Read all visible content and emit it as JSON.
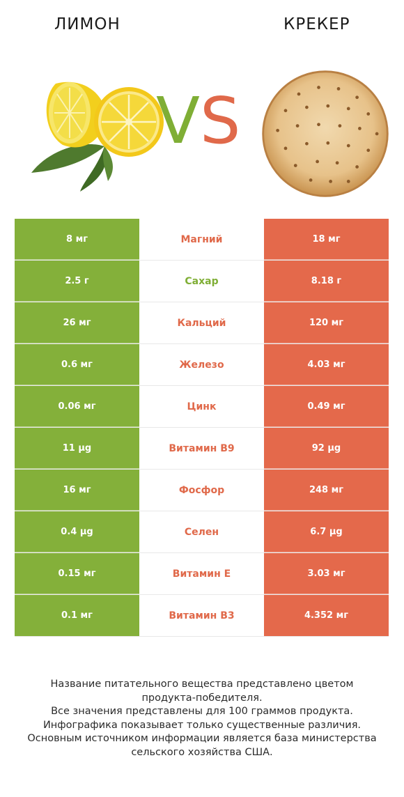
{
  "header": {
    "left_title": "ЛИМОН",
    "right_title": "КРЕКЕР",
    "vs_v": "V",
    "vs_s": "S"
  },
  "colors": {
    "left_food": "#84b03a",
    "right_food": "#e4694b",
    "vs_v": "#7fae35",
    "vs_s": "#e0694a"
  },
  "rows": [
    {
      "left": "8 мг",
      "nutrient": "Магний",
      "right": "18 мг",
      "winner": "right"
    },
    {
      "left": "2.5 г",
      "nutrient": "Сахар",
      "right": "8.18 г",
      "winner": "left"
    },
    {
      "left": "26 мг",
      "nutrient": "Кальций",
      "right": "120 мг",
      "winner": "right"
    },
    {
      "left": "0.6 мг",
      "nutrient": "Железо",
      "right": "4.03 мг",
      "winner": "right"
    },
    {
      "left": "0.06 мг",
      "nutrient": "Цинк",
      "right": "0.49 мг",
      "winner": "right"
    },
    {
      "left": "11 µg",
      "nutrient": "Витамин B9",
      "right": "92 µg",
      "winner": "right"
    },
    {
      "left": "16 мг",
      "nutrient": "Фосфор",
      "right": "248 мг",
      "winner": "right"
    },
    {
      "left": "0.4 µg",
      "nutrient": "Селен",
      "right": "6.7 µg",
      "winner": "right"
    },
    {
      "left": "0.15 мг",
      "nutrient": "Витамин E",
      "right": "3.03 мг",
      "winner": "right"
    },
    {
      "left": "0.1 мг",
      "nutrient": "Витамин B3",
      "right": "4.352 мг",
      "winner": "right"
    }
  ],
  "footer": {
    "lines": [
      "Название питательного вещества представлено цветом",
      "продукта-победителя.",
      "Все значения представлены для 100 граммов продукта.",
      "Инфографика показывает только существенные различия.",
      "Основным источником информации является база министерства",
      "сельского хозяйства США."
    ]
  }
}
